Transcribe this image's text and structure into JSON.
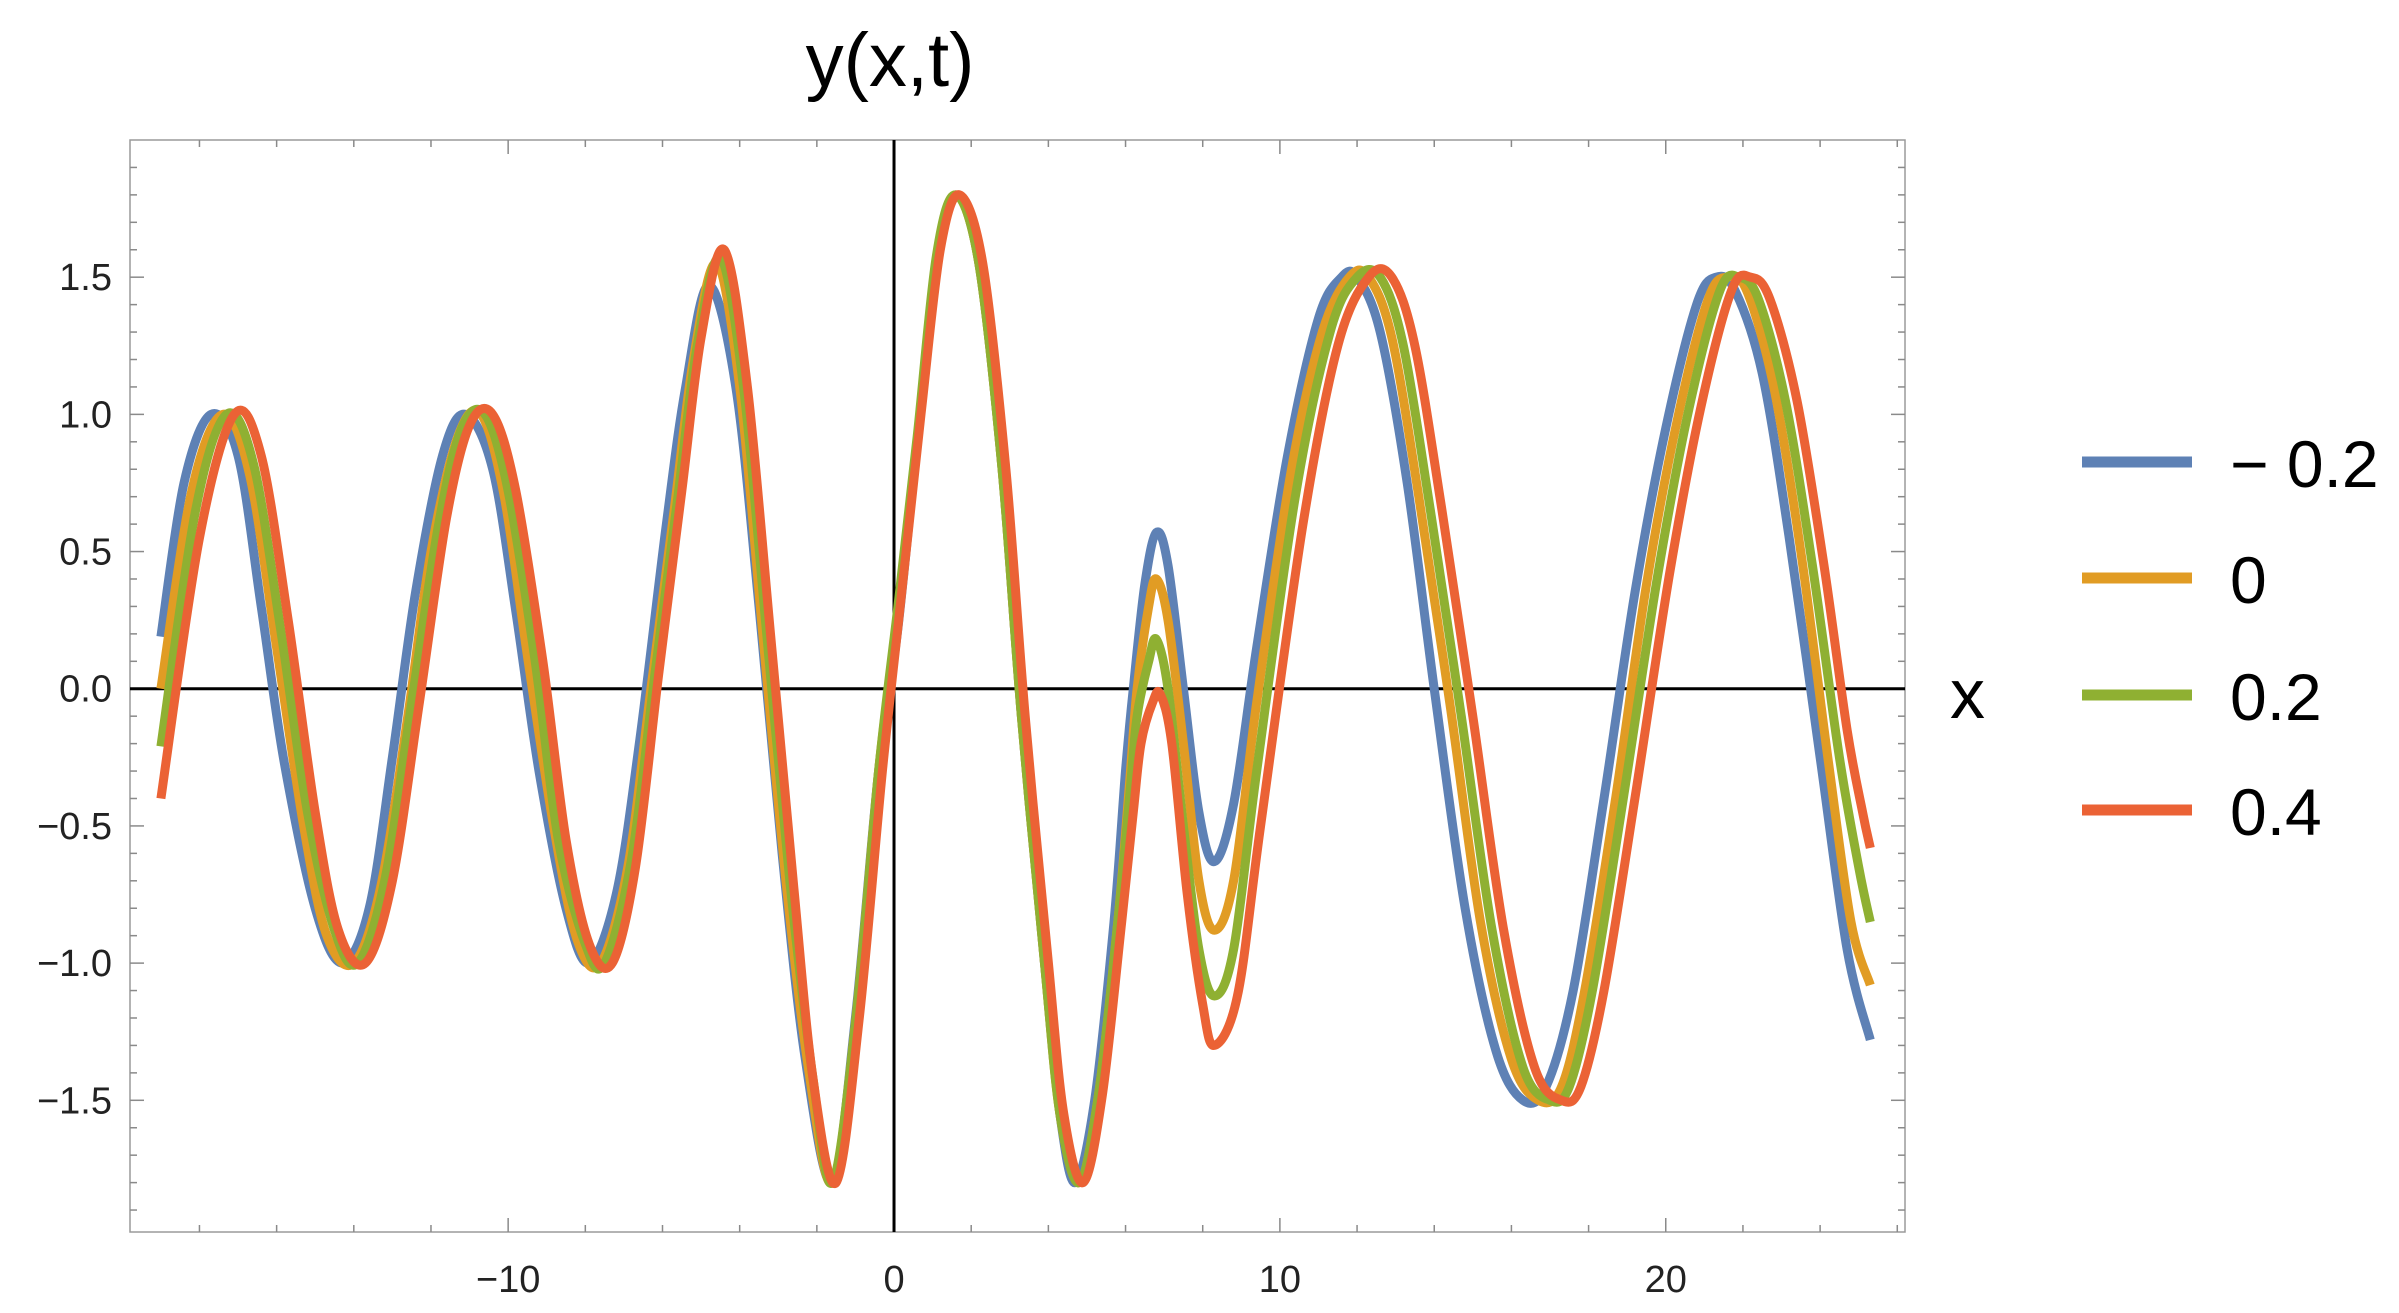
{
  "chart_data": {
    "type": "line",
    "title": "y(x,t)",
    "xlabel": "x",
    "ylabel": "",
    "xlim": [
      -19.8,
      26.2
    ],
    "ylim": [
      -1.98,
      2.0
    ],
    "x_ticks": [
      -10,
      0,
      10,
      20
    ],
    "x_tick_labels": [
      "−10",
      "0",
      "10",
      "20"
    ],
    "y_ticks": [
      -1.5,
      -1.0,
      -0.5,
      0.0,
      0.5,
      1.0,
      1.5
    ],
    "y_tick_labels": [
      "−1.5",
      "−1.0",
      "−0.5",
      "0.0",
      "0.5",
      "1.0",
      "1.5"
    ],
    "x_range_plotted": [
      -19.0,
      25.3
    ],
    "grid": false,
    "axes_through_origin": true,
    "frame": true,
    "legend_position": "right",
    "series": [
      {
        "name": "− 0.2",
        "color": "#5E81B5",
        "points": [
          [
            -19.0,
            0.19
          ],
          [
            -18.4,
            0.75
          ],
          [
            -17.7,
            1.0
          ],
          [
            -17.0,
            0.85
          ],
          [
            -16.4,
            0.3
          ],
          [
            -15.8,
            -0.27
          ],
          [
            -15.0,
            -0.8
          ],
          [
            -14.3,
            -1.0
          ],
          [
            -13.6,
            -0.8
          ],
          [
            -13.0,
            -0.25
          ],
          [
            -12.4,
            0.35
          ],
          [
            -11.7,
            0.85
          ],
          [
            -11.1,
            1.0
          ],
          [
            -10.4,
            0.8
          ],
          [
            -9.8,
            0.28
          ],
          [
            -9.2,
            -0.3
          ],
          [
            -8.5,
            -0.8
          ],
          [
            -7.9,
            -1.0
          ],
          [
            -7.2,
            -0.75
          ],
          [
            -6.6,
            -0.2
          ],
          [
            -5.9,
            0.6
          ],
          [
            -5.4,
            1.1
          ],
          [
            -4.8,
            1.47
          ],
          [
            -4.1,
            1.1
          ],
          [
            -3.5,
            0.3
          ],
          [
            -2.9,
            -0.6
          ],
          [
            -2.3,
            -1.35
          ],
          [
            -1.6,
            -1.8
          ],
          [
            -1.0,
            -1.2
          ],
          [
            -0.4,
            -0.3
          ],
          [
            0.1,
            0.22
          ],
          [
            0.6,
            0.9
          ],
          [
            1.1,
            1.55
          ],
          [
            1.6,
            1.8
          ],
          [
            2.2,
            1.55
          ],
          [
            2.8,
            0.8
          ],
          [
            3.3,
            -0.1
          ],
          [
            3.9,
            -1.0
          ],
          [
            4.3,
            -1.55
          ],
          [
            4.7,
            -1.8
          ],
          [
            5.2,
            -1.5
          ],
          [
            5.7,
            -0.85
          ],
          [
            6.0,
            -0.3
          ],
          [
            6.2,
            0.0
          ],
          [
            6.5,
            0.38
          ],
          [
            6.8,
            0.57
          ],
          [
            7.1,
            0.45
          ],
          [
            7.5,
            0.0
          ],
          [
            7.9,
            -0.45
          ],
          [
            8.3,
            -0.63
          ],
          [
            8.8,
            -0.42
          ],
          [
            9.4,
            0.15
          ],
          [
            10.2,
            0.85
          ],
          [
            11.0,
            1.35
          ],
          [
            11.6,
            1.5
          ],
          [
            12.0,
            1.5
          ],
          [
            12.6,
            1.3
          ],
          [
            13.3,
            0.75
          ],
          [
            14.0,
            0.0
          ],
          [
            14.8,
            -0.8
          ],
          [
            15.6,
            -1.32
          ],
          [
            16.3,
            -1.5
          ],
          [
            16.9,
            -1.45
          ],
          [
            17.6,
            -1.1
          ],
          [
            18.4,
            -0.4
          ],
          [
            19.2,
            0.35
          ],
          [
            20.0,
            0.95
          ],
          [
            20.8,
            1.4
          ],
          [
            21.3,
            1.5
          ],
          [
            21.8,
            1.45
          ],
          [
            22.5,
            1.15
          ],
          [
            23.2,
            0.55
          ],
          [
            24.0,
            -0.25
          ],
          [
            24.7,
            -0.95
          ],
          [
            25.3,
            -1.28
          ]
        ]
      },
      {
        "name": "0",
        "color": "#E19C24",
        "points": [
          [
            -19.0,
            0.0
          ],
          [
            -18.2,
            0.72
          ],
          [
            -17.4,
            1.0
          ],
          [
            -16.7,
            0.78
          ],
          [
            -16.0,
            0.15
          ],
          [
            -15.3,
            -0.5
          ],
          [
            -14.7,
            -0.9
          ],
          [
            -14.0,
            -1.0
          ],
          [
            -13.3,
            -0.72
          ],
          [
            -12.6,
            -0.1
          ],
          [
            -12.0,
            0.5
          ],
          [
            -11.3,
            0.92
          ],
          [
            -10.7,
            1.0
          ],
          [
            -10.1,
            0.7
          ],
          [
            -9.5,
            0.12
          ],
          [
            -8.8,
            -0.52
          ],
          [
            -8.2,
            -0.92
          ],
          [
            -7.6,
            -1.0
          ],
          [
            -6.9,
            -0.65
          ],
          [
            -6.3,
            0.0
          ],
          [
            -5.7,
            0.65
          ],
          [
            -5.2,
            1.2
          ],
          [
            -4.6,
            1.55
          ],
          [
            -4.0,
            1.1
          ],
          [
            -3.4,
            0.2
          ],
          [
            -2.8,
            -0.7
          ],
          [
            -2.2,
            -1.4
          ],
          [
            -1.6,
            -1.8
          ],
          [
            -1.0,
            -1.22
          ],
          [
            -0.4,
            -0.3
          ],
          [
            0.1,
            0.27
          ],
          [
            0.6,
            0.9
          ],
          [
            1.1,
            1.57
          ],
          [
            1.6,
            1.8
          ],
          [
            2.2,
            1.55
          ],
          [
            2.8,
            0.8
          ],
          [
            3.3,
            -0.1
          ],
          [
            3.9,
            -1.0
          ],
          [
            4.3,
            -1.55
          ],
          [
            4.8,
            -1.8
          ],
          [
            5.3,
            -1.48
          ],
          [
            5.8,
            -0.85
          ],
          [
            6.1,
            -0.35
          ],
          [
            6.3,
            0.0
          ],
          [
            6.6,
            0.3
          ],
          [
            6.8,
            0.4
          ],
          [
            7.1,
            0.25
          ],
          [
            7.5,
            -0.2
          ],
          [
            7.9,
            -0.7
          ],
          [
            8.3,
            -0.88
          ],
          [
            8.8,
            -0.7
          ],
          [
            9.4,
            -0.05
          ],
          [
            10.3,
            0.8
          ],
          [
            11.1,
            1.3
          ],
          [
            11.8,
            1.5
          ],
          [
            12.3,
            1.5
          ],
          [
            12.9,
            1.28
          ],
          [
            13.6,
            0.7
          ],
          [
            14.4,
            -0.05
          ],
          [
            15.2,
            -0.85
          ],
          [
            16.0,
            -1.35
          ],
          [
            16.7,
            -1.5
          ],
          [
            17.3,
            -1.45
          ],
          [
            17.9,
            -1.1
          ],
          [
            18.7,
            -0.4
          ],
          [
            19.5,
            0.38
          ],
          [
            20.3,
            0.98
          ],
          [
            21.1,
            1.42
          ],
          [
            21.6,
            1.5
          ],
          [
            22.1,
            1.45
          ],
          [
            22.8,
            1.1
          ],
          [
            23.5,
            0.5
          ],
          [
            24.2,
            -0.25
          ],
          [
            24.8,
            -0.85
          ],
          [
            25.3,
            -1.08
          ]
        ]
      },
      {
        "name": "0.2",
        "color": "#8FB032",
        "points": [
          [
            -19.0,
            -0.21
          ],
          [
            -18.1,
            0.65
          ],
          [
            -17.3,
            1.0
          ],
          [
            -16.6,
            0.82
          ],
          [
            -15.9,
            0.22
          ],
          [
            -15.2,
            -0.45
          ],
          [
            -14.5,
            -0.88
          ],
          [
            -13.9,
            -1.0
          ],
          [
            -13.2,
            -0.7
          ],
          [
            -12.5,
            -0.05
          ],
          [
            -11.8,
            0.6
          ],
          [
            -11.2,
            0.95
          ],
          [
            -10.6,
            1.0
          ],
          [
            -10.0,
            0.72
          ],
          [
            -9.3,
            0.1
          ],
          [
            -8.7,
            -0.55
          ],
          [
            -8.0,
            -0.93
          ],
          [
            -7.5,
            -1.0
          ],
          [
            -6.8,
            -0.62
          ],
          [
            -6.2,
            0.05
          ],
          [
            -5.6,
            0.7
          ],
          [
            -5.1,
            1.25
          ],
          [
            -4.5,
            1.57
          ],
          [
            -3.9,
            1.1
          ],
          [
            -3.3,
            0.2
          ],
          [
            -2.7,
            -0.7
          ],
          [
            -2.1,
            -1.42
          ],
          [
            -1.6,
            -1.8
          ],
          [
            -1.0,
            -1.22
          ],
          [
            -0.4,
            -0.3
          ],
          [
            0.1,
            0.3
          ],
          [
            0.6,
            0.92
          ],
          [
            1.1,
            1.58
          ],
          [
            1.6,
            1.8
          ],
          [
            2.2,
            1.55
          ],
          [
            2.8,
            0.8
          ],
          [
            3.3,
            -0.1
          ],
          [
            3.9,
            -1.0
          ],
          [
            4.3,
            -1.55
          ],
          [
            4.8,
            -1.8
          ],
          [
            5.3,
            -1.48
          ],
          [
            5.8,
            -0.85
          ],
          [
            6.1,
            -0.4
          ],
          [
            6.3,
            -0.1
          ],
          [
            6.6,
            0.1
          ],
          [
            6.8,
            0.18
          ],
          [
            7.1,
            0.0
          ],
          [
            7.5,
            -0.5
          ],
          [
            7.9,
            -0.95
          ],
          [
            8.3,
            -1.12
          ],
          [
            8.8,
            -0.95
          ],
          [
            9.4,
            -0.3
          ],
          [
            10.4,
            0.7
          ],
          [
            11.3,
            1.3
          ],
          [
            12.0,
            1.5
          ],
          [
            12.6,
            1.5
          ],
          [
            13.2,
            1.25
          ],
          [
            13.9,
            0.65
          ],
          [
            14.7,
            -0.1
          ],
          [
            15.5,
            -0.88
          ],
          [
            16.3,
            -1.38
          ],
          [
            17.0,
            -1.5
          ],
          [
            17.5,
            -1.45
          ],
          [
            18.1,
            -1.1
          ],
          [
            18.9,
            -0.4
          ],
          [
            19.8,
            0.42
          ],
          [
            20.6,
            1.02
          ],
          [
            21.4,
            1.45
          ],
          [
            21.9,
            1.5
          ],
          [
            22.4,
            1.42
          ],
          [
            23.1,
            1.05
          ],
          [
            23.8,
            0.45
          ],
          [
            24.5,
            -0.25
          ],
          [
            25.0,
            -0.65
          ],
          [
            25.3,
            -0.85
          ]
        ]
      },
      {
        "name": "0.4",
        "color": "#EB6235",
        "points": [
          [
            -19.0,
            -0.4
          ],
          [
            -18.0,
            0.55
          ],
          [
            -17.1,
            1.0
          ],
          [
            -16.4,
            0.85
          ],
          [
            -15.7,
            0.25
          ],
          [
            -15.0,
            -0.45
          ],
          [
            -14.4,
            -0.88
          ],
          [
            -13.7,
            -1.0
          ],
          [
            -13.0,
            -0.7
          ],
          [
            -12.3,
            -0.05
          ],
          [
            -11.6,
            0.62
          ],
          [
            -11.0,
            0.96
          ],
          [
            -10.4,
            1.0
          ],
          [
            -9.8,
            0.72
          ],
          [
            -9.1,
            0.1
          ],
          [
            -8.5,
            -0.55
          ],
          [
            -7.9,
            -0.93
          ],
          [
            -7.3,
            -1.0
          ],
          [
            -6.7,
            -0.65
          ],
          [
            -6.1,
            0.05
          ],
          [
            -5.5,
            0.72
          ],
          [
            -5.0,
            1.28
          ],
          [
            -4.4,
            1.6
          ],
          [
            -3.8,
            1.1
          ],
          [
            -3.2,
            0.2
          ],
          [
            -2.6,
            -0.72
          ],
          [
            -2.1,
            -1.42
          ],
          [
            -1.5,
            -1.8
          ],
          [
            -0.9,
            -1.2
          ],
          [
            -0.3,
            -0.3
          ],
          [
            0.2,
            0.35
          ],
          [
            0.7,
            1.0
          ],
          [
            1.2,
            1.6
          ],
          [
            1.7,
            1.8
          ],
          [
            2.3,
            1.55
          ],
          [
            2.9,
            0.8
          ],
          [
            3.4,
            -0.1
          ],
          [
            4.0,
            -1.0
          ],
          [
            4.4,
            -1.55
          ],
          [
            4.9,
            -1.8
          ],
          [
            5.4,
            -1.48
          ],
          [
            5.9,
            -0.85
          ],
          [
            6.2,
            -0.45
          ],
          [
            6.4,
            -0.2
          ],
          [
            6.7,
            -0.05
          ],
          [
            6.9,
            -0.02
          ],
          [
            7.2,
            -0.2
          ],
          [
            7.6,
            -0.75
          ],
          [
            8.0,
            -1.15
          ],
          [
            8.3,
            -1.3
          ],
          [
            8.9,
            -1.12
          ],
          [
            9.5,
            -0.5
          ],
          [
            10.6,
            0.6
          ],
          [
            11.5,
            1.25
          ],
          [
            12.3,
            1.5
          ],
          [
            12.9,
            1.5
          ],
          [
            13.5,
            1.25
          ],
          [
            14.2,
            0.65
          ],
          [
            15.0,
            -0.1
          ],
          [
            15.8,
            -0.88
          ],
          [
            16.6,
            -1.38
          ],
          [
            17.3,
            -1.5
          ],
          [
            17.8,
            -1.45
          ],
          [
            18.4,
            -1.1
          ],
          [
            19.2,
            -0.4
          ],
          [
            20.1,
            0.42
          ],
          [
            20.9,
            1.02
          ],
          [
            21.7,
            1.45
          ],
          [
            22.2,
            1.5
          ],
          [
            22.7,
            1.42
          ],
          [
            23.4,
            1.05
          ],
          [
            24.1,
            0.45
          ],
          [
            24.7,
            -0.15
          ],
          [
            25.1,
            -0.45
          ],
          [
            25.3,
            -0.58
          ]
        ]
      }
    ]
  }
}
